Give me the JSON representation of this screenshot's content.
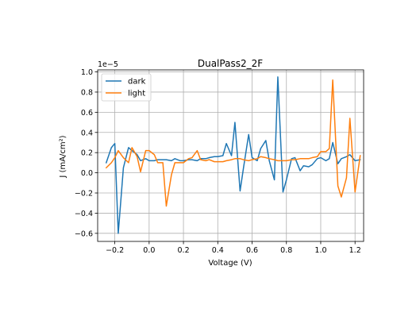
{
  "chart_data": {
    "type": "line",
    "title": "DualPass2_2F",
    "xlabel": "Voltage (V)",
    "ylabel": "J (mA/cm²)",
    "offset_text": "1e−5",
    "xlim": [
      -0.3,
      1.25
    ],
    "ylim": [
      -0.68,
      1.02
    ],
    "x_ticks": [
      -0.2,
      0.0,
      0.2,
      0.4,
      0.6,
      0.8,
      1.0,
      1.2
    ],
    "x_tick_labels": [
      "−0.2",
      "0.0",
      "0.2",
      "0.4",
      "0.6",
      "0.8",
      "1.0",
      "1.2"
    ],
    "y_ticks": [
      -0.6,
      -0.4,
      -0.2,
      0.0,
      0.2,
      0.4,
      0.6,
      0.8,
      1.0
    ],
    "y_tick_labels": [
      "−0.6",
      "−0.4",
      "−0.2",
      "0.0",
      "0.2",
      "0.4",
      "0.6",
      "0.8",
      "1.0"
    ],
    "grid": true,
    "legend_position": "top-left",
    "series": [
      {
        "name": "dark",
        "color": "#1f77b4",
        "x": [
          -0.25,
          -0.22,
          -0.2,
          -0.18,
          -0.15,
          -0.12,
          -0.1,
          -0.07,
          -0.05,
          -0.02,
          0.0,
          0.03,
          0.05,
          0.08,
          0.1,
          0.13,
          0.15,
          0.18,
          0.2,
          0.23,
          0.25,
          0.28,
          0.3,
          0.33,
          0.35,
          0.38,
          0.4,
          0.43,
          0.45,
          0.48,
          0.5,
          0.53,
          0.55,
          0.58,
          0.6,
          0.63,
          0.65,
          0.68,
          0.7,
          0.73,
          0.75,
          0.78,
          0.8,
          0.83,
          0.85,
          0.88,
          0.9,
          0.93,
          0.95,
          0.98,
          1.0,
          1.03,
          1.05,
          1.07,
          1.1,
          1.12,
          1.15,
          1.17,
          1.2,
          1.23
        ],
        "y": [
          0.1,
          0.25,
          0.29,
          -0.6,
          0.05,
          0.25,
          0.22,
          0.18,
          0.12,
          0.14,
          0.12,
          0.12,
          0.13,
          0.13,
          0.13,
          0.12,
          0.14,
          0.12,
          0.12,
          0.13,
          0.13,
          0.12,
          0.14,
          0.14,
          0.15,
          0.16,
          0.16,
          0.17,
          0.29,
          0.17,
          0.5,
          -0.18,
          0.05,
          0.38,
          0.15,
          0.12,
          0.24,
          0.32,
          0.12,
          -0.07,
          0.95,
          -0.19,
          -0.07,
          0.14,
          0.15,
          0.02,
          0.07,
          0.06,
          0.08,
          0.14,
          0.15,
          0.12,
          0.14,
          0.3,
          0.09,
          0.14,
          0.16,
          0.18,
          0.12,
          0.13
        ]
      },
      {
        "name": "light",
        "color": "#ff7f0e",
        "x": [
          -0.25,
          -0.22,
          -0.2,
          -0.18,
          -0.15,
          -0.12,
          -0.1,
          -0.07,
          -0.05,
          -0.02,
          0.0,
          0.03,
          0.05,
          0.08,
          0.1,
          0.13,
          0.15,
          0.18,
          0.2,
          0.23,
          0.25,
          0.28,
          0.3,
          0.33,
          0.35,
          0.38,
          0.4,
          0.43,
          0.45,
          0.48,
          0.5,
          0.53,
          0.55,
          0.58,
          0.6,
          0.63,
          0.65,
          0.68,
          0.7,
          0.73,
          0.75,
          0.78,
          0.8,
          0.83,
          0.85,
          0.88,
          0.9,
          0.93,
          0.95,
          0.98,
          1.0,
          1.03,
          1.05,
          1.07,
          1.1,
          1.12,
          1.15,
          1.17,
          1.2,
          1.23
        ],
        "y": [
          0.05,
          0.1,
          0.15,
          0.22,
          0.15,
          0.1,
          0.25,
          0.16,
          0.01,
          0.22,
          0.22,
          0.18,
          0.1,
          0.1,
          -0.33,
          -0.02,
          0.1,
          0.1,
          0.1,
          0.14,
          0.15,
          0.22,
          0.13,
          0.12,
          0.13,
          0.11,
          0.11,
          0.11,
          0.12,
          0.13,
          0.14,
          0.14,
          0.13,
          0.12,
          0.13,
          0.14,
          0.16,
          0.15,
          0.14,
          0.13,
          0.12,
          0.12,
          0.12,
          0.13,
          0.13,
          0.14,
          0.14,
          0.14,
          0.15,
          0.16,
          0.21,
          0.21,
          0.24,
          0.92,
          -0.13,
          -0.24,
          -0.05,
          0.54,
          -0.19,
          0.17
        ]
      }
    ]
  }
}
